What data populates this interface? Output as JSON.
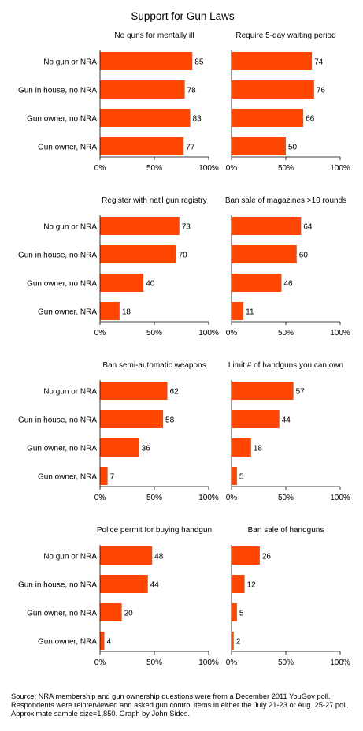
{
  "title": "Support for Gun Laws",
  "categories": [
    "No gun or NRA",
    "Gun in house, no NRA",
    "Gun owner, no NRA",
    "Gun owner, NRA"
  ],
  "bar_color": "#ff4500",
  "axis_ticks": [
    "0%",
    "50%",
    "100%"
  ],
  "source": "Source: NRA membership and gun ownership questions were from a December 2011 YouGov poll. Respondents were reinterviewed and asked gun control items in either the July 21-23 or Aug. 25-27 poll. Approximate sample size=1,850. Graph by John Sides.",
  "chart_data": [
    {
      "type": "bar",
      "orientation": "horizontal",
      "title": "No guns for mentally ill",
      "categories": [
        "No gun or NRA",
        "Gun in house, no NRA",
        "Gun owner, no NRA",
        "Gun owner, NRA"
      ],
      "values": [
        85,
        78,
        83,
        77
      ],
      "xlim": [
        0,
        100
      ],
      "xticks": [
        "0%",
        "50%",
        "100%"
      ]
    },
    {
      "type": "bar",
      "orientation": "horizontal",
      "title": "Require 5-day waiting period",
      "categories": [
        "No gun or NRA",
        "Gun in house, no NRA",
        "Gun owner, no NRA",
        "Gun owner, NRA"
      ],
      "values": [
        74,
        76,
        66,
        50
      ],
      "xlim": [
        0,
        100
      ],
      "xticks": [
        "0%",
        "50%",
        "100%"
      ]
    },
    {
      "type": "bar",
      "orientation": "horizontal",
      "title": "Register with nat'l gun registry",
      "categories": [
        "No gun or NRA",
        "Gun in house, no NRA",
        "Gun owner, no NRA",
        "Gun owner, NRA"
      ],
      "values": [
        73,
        70,
        40,
        18
      ],
      "xlim": [
        0,
        100
      ],
      "xticks": [
        "0%",
        "50%",
        "100%"
      ]
    },
    {
      "type": "bar",
      "orientation": "horizontal",
      "title": "Ban sale of magazines >10 rounds",
      "categories": [
        "No gun or NRA",
        "Gun in house, no NRA",
        "Gun owner, no NRA",
        "Gun owner, NRA"
      ],
      "values": [
        64,
        60,
        46,
        11
      ],
      "xlim": [
        0,
        100
      ],
      "xticks": [
        "0%",
        "50%",
        "100%"
      ]
    },
    {
      "type": "bar",
      "orientation": "horizontal",
      "title": "Ban semi-automatic weapons",
      "categories": [
        "No gun or NRA",
        "Gun in house, no NRA",
        "Gun owner, no NRA",
        "Gun owner, NRA"
      ],
      "values": [
        62,
        58,
        36,
        7
      ],
      "xlim": [
        0,
        100
      ],
      "xticks": [
        "0%",
        "50%",
        "100%"
      ]
    },
    {
      "type": "bar",
      "orientation": "horizontal",
      "title": "Limit # of handguns you can own",
      "categories": [
        "No gun or NRA",
        "Gun in house, no NRA",
        "Gun owner, no NRA",
        "Gun owner, NRA"
      ],
      "values": [
        57,
        44,
        18,
        5
      ],
      "xlim": [
        0,
        100
      ],
      "xticks": [
        "0%",
        "50%",
        "100%"
      ]
    },
    {
      "type": "bar",
      "orientation": "horizontal",
      "title": "Police permit for buying handgun",
      "categories": [
        "No gun or NRA",
        "Gun in house, no NRA",
        "Gun owner, no NRA",
        "Gun owner, NRA"
      ],
      "values": [
        48,
        44,
        20,
        4
      ],
      "xlim": [
        0,
        100
      ],
      "xticks": [
        "0%",
        "50%",
        "100%"
      ]
    },
    {
      "type": "bar",
      "orientation": "horizontal",
      "title": "Ban sale of handguns",
      "categories": [
        "No gun or NRA",
        "Gun in house, no NRA",
        "Gun owner, no NRA",
        "Gun owner, NRA"
      ],
      "values": [
        26,
        12,
        5,
        2
      ],
      "xlim": [
        0,
        100
      ],
      "xticks": [
        "0%",
        "50%",
        "100%"
      ]
    }
  ]
}
